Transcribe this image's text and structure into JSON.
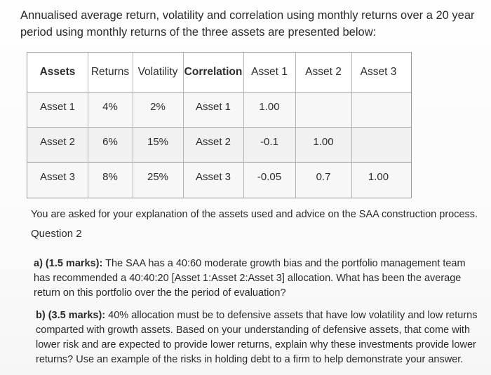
{
  "intro": {
    "text": "Annualised average return, volatility and correlation using monthly returns over a 20 year period using monthly returns of the three assets are presented below:"
  },
  "table": {
    "headers": [
      "Assets",
      "Returns",
      "Volatility",
      "Correlation",
      "Asset 1",
      "Asset 2",
      "Asset 3"
    ],
    "rows": [
      [
        "Asset 1",
        "4%",
        "2%",
        "Asset 1",
        "1.00",
        "",
        ""
      ],
      [
        "Asset 2",
        "6%",
        "15%",
        "Asset 2",
        "-0.1",
        "1.00",
        ""
      ],
      [
        "Asset 3",
        "8%",
        "25%",
        "Asset 3",
        "-0.05",
        "0.7",
        "1.00"
      ]
    ]
  },
  "body": {
    "ask": "You are asked for your explanation of the assets used and advice on the SAA construction process.",
    "question_title": "Question 2",
    "part_a_label": "a) (1.5 marks):",
    "part_a_text": " The SAA has a 40:60 moderate growth bias and the portfolio management team has recommended a 40:40:20 [Asset 1:Asset 2:Asset 3] allocation. What has been the average return on this portfolio over the the period of evaluation?",
    "part_b_label": "b) (3.5 marks):",
    "part_b_text": " 40% allocation must be to defensive assets that have low volatility and low returns comparted with growth assets. Based on your understanding of defensive assets, that come with lower risk and are expected to provide lower returns, explain why these investments provide lower returns? Use an example of the risks in holding debt to a firm to help demonstrate your answer."
  }
}
